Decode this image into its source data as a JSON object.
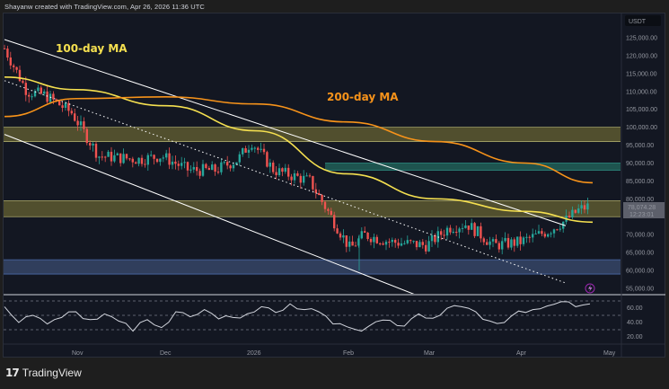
{
  "header": {
    "attribution": "Shayanw created with TradingView.com, Apr 26, 2026 11:36 UTC"
  },
  "footer": {
    "brand_logo": "17",
    "brand_name": "TradingView"
  },
  "price_axis": {
    "currency": "USDT",
    "ticks": [
      "125,000.00",
      "120,000.00",
      "115,000.00",
      "110,000.00",
      "105,000.00",
      "100,000.00",
      "95,000.00",
      "90,000.00",
      "85,000.00",
      "80,000.00",
      "75,000.00",
      "70,000.00",
      "65,000.00",
      "60,000.00",
      "55,000.00"
    ],
    "last_price": "78,074.28",
    "countdown": "12:23:01"
  },
  "rsi_axis": {
    "ticks": [
      "60.00",
      "40.00",
      "20.00"
    ]
  },
  "time_axis": {
    "labels": [
      "Nov",
      "Dec",
      "2026",
      "Feb",
      "Mar",
      "Apr",
      "May"
    ]
  },
  "annotations": {
    "ma100_label": "100-day MA",
    "ma200_label": "200-day MA"
  },
  "colors": {
    "background": "#131722",
    "candle_up": "#26a69a",
    "candle_down": "#ef5350",
    "ma100": "#f5e050",
    "ma200": "#f7931a",
    "rsi_line": "#d1d4dc",
    "zone_yellow": "#54522f",
    "zone_teal": "#1f5752",
    "zone_blue": "#324060",
    "trendline": "#ffffff"
  },
  "chart_data": {
    "type": "candlestick",
    "title": "BTC/USDT Daily",
    "xlabel": "",
    "ylabel": "USDT",
    "ylim": [
      53000,
      127000
    ],
    "x_range": [
      "2025-10-15",
      "2026-05-01"
    ],
    "x_ticks": [
      "Nov",
      "Dec",
      "2026",
      "Feb",
      "Mar",
      "Apr",
      "May"
    ],
    "y_ticks": [
      55000,
      60000,
      65000,
      70000,
      75000,
      80000,
      85000,
      90000,
      95000,
      100000,
      105000,
      110000,
      115000,
      120000,
      125000
    ],
    "last_price": 78074.28,
    "close_approx": {
      "dates": [
        "Oct 15",
        "Oct 25",
        "Nov 1",
        "Nov 10",
        "Nov 20",
        "Dec 1",
        "Dec 10",
        "Dec 20",
        "Jan 1",
        "Jan 10",
        "Jan 15",
        "Jan 25",
        "Feb 1",
        "Feb 5",
        "Feb 10",
        "Feb 20",
        "Mar 1",
        "Mar 10",
        "Mar 15",
        "Mar 25",
        "Apr 1",
        "Apr 10",
        "Apr 15",
        "Apr 20",
        "Apr 26"
      ],
      "values": [
        122000,
        110000,
        109000,
        104000,
        92000,
        91000,
        92000,
        88000,
        88000,
        91000,
        96000,
        88000,
        85000,
        66000,
        70000,
        68000,
        67000,
        72000,
        73000,
        67000,
        68000,
        71000,
        74000,
        77000,
        78074
      ]
    },
    "series": [
      {
        "name": "100-day MA",
        "color": "#f5e050",
        "points": [
          [
            0,
            114000
          ],
          [
            80,
            110500
          ],
          [
            180,
            106000
          ],
          [
            280,
            99000
          ],
          [
            380,
            87000
          ],
          [
            480,
            80000
          ],
          [
            580,
            76500
          ],
          [
            655,
            73500
          ]
        ]
      },
      {
        "name": "200-day MA",
        "color": "#f7931a",
        "points": [
          [
            0,
            103000
          ],
          [
            80,
            108000
          ],
          [
            180,
            108500
          ],
          [
            280,
            106500
          ],
          [
            380,
            101500
          ],
          [
            480,
            96000
          ],
          [
            580,
            90000
          ],
          [
            655,
            84500
          ]
        ]
      }
    ],
    "zones": [
      {
        "name": "resistance-zone-upper",
        "from": 96000,
        "to": 100000,
        "color": "#54522f"
      },
      {
        "name": "fvg-zone",
        "from": 88000,
        "to": 90000,
        "color": "#1f5752"
      },
      {
        "name": "support-resistance-zone",
        "from": 75000,
        "to": 79500,
        "color": "#54522f"
      },
      {
        "name": "support-zone-lower",
        "from": 59000,
        "to": 63000,
        "color": "#324060"
      }
    ],
    "trendlines": [
      {
        "name": "channel-upper",
        "style": "solid",
        "from": [
          0,
          124500
        ],
        "to": [
          625,
          72500
        ]
      },
      {
        "name": "channel-mid",
        "style": "dotted",
        "from": [
          0,
          113000
        ],
        "to": [
          625,
          56500
        ]
      },
      {
        "name": "channel-lower",
        "style": "solid",
        "from": [
          0,
          98000
        ],
        "to": [
          460,
          53000
        ]
      }
    ],
    "rsi": {
      "ylim": [
        0,
        100
      ],
      "levels": [
        70,
        50,
        30
      ],
      "y_ticks": [
        60,
        40,
        20
      ],
      "approx_values": [
        62,
        40,
        50,
        38,
        47,
        55,
        44,
        52,
        42,
        28,
        44,
        33,
        55,
        48,
        58,
        45,
        47,
        52,
        62,
        54,
        66,
        58,
        55,
        38,
        34,
        28,
        41,
        43,
        35,
        52,
        46,
        60,
        62,
        55,
        42,
        40,
        56,
        58,
        63,
        69,
        62,
        66
      ]
    },
    "legend": [],
    "grid": false
  }
}
